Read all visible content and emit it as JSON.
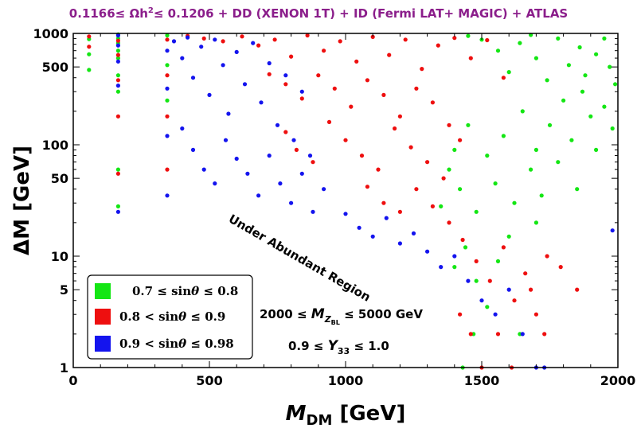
{
  "chart_data": {
    "type": "scatter",
    "title": "0.1166≤ Ωh²≤ 0.1206 + DD (XENON 1T) + ID (Fermi LAT+ MAGIC) + ATLAS",
    "title_parts": {
      "a": "0.1166≤ Ωh",
      "sup": "2",
      "b": "≤ 0.1206 + DD (XENON 1T) + ID (Fermi LAT+ MAGIC) + ATLAS"
    },
    "xlabel": "M_DM [GeV]",
    "xlabel_parts": {
      "main": "M",
      "sub": "DM",
      "unit": " [GeV]"
    },
    "ylabel": "ΔM [GeV]",
    "xlim": [
      0,
      2000
    ],
    "ylim": [
      1,
      1000
    ],
    "yscale": "log",
    "x_ticks": [
      {
        "value": 0,
        "label": "0"
      },
      {
        "value": 500,
        "label": "500"
      },
      {
        "value": 1000,
        "label": "1000"
      },
      {
        "value": 1500,
        "label": "1500"
      },
      {
        "value": 2000,
        "label": "2000"
      }
    ],
    "y_ticks": [
      {
        "value": 1,
        "label": "1"
      },
      {
        "value": 5,
        "label": "5"
      },
      {
        "value": 10,
        "label": "10"
      },
      {
        "value": 50,
        "label": "50"
      },
      {
        "value": 100,
        "label": "100"
      },
      {
        "value": 500,
        "label": "500"
      },
      {
        "value": 1000,
        "label": "1000"
      }
    ],
    "annotations": {
      "region": "Under Abundant Region",
      "mzbl": {
        "a": "2000 ≤ ",
        "main": "M",
        "sub1": "Z",
        "sub2": "BL",
        "b": " ≤ 5000 GeV"
      },
      "y33": {
        "a": "0.9 ≤ ",
        "main": "Y",
        "sub": "33",
        "b": " ≤ 1.0"
      }
    },
    "series": [
      {
        "name": "0.7 ≤ sinθ ≤ 0.8",
        "label_parts": {
          "a": "0.7 ≤ sin",
          "theta": "θ",
          "b": " ≤ 0.8"
        },
        "color": "#14e614",
        "points": [
          [
            58,
            890
          ],
          [
            58,
            650
          ],
          [
            58,
            470
          ],
          [
            165,
            980
          ],
          [
            165,
            900
          ],
          [
            165,
            820
          ],
          [
            165,
            700
          ],
          [
            165,
            600
          ],
          [
            165,
            420
          ],
          [
            165,
            300
          ],
          [
            165,
            60
          ],
          [
            165,
            28
          ],
          [
            345,
            960
          ],
          [
            345,
            520
          ],
          [
            345,
            250
          ],
          [
            1350,
            28
          ],
          [
            1380,
            60
          ],
          [
            1400,
            90
          ],
          [
            1420,
            40
          ],
          [
            1450,
            150
          ],
          [
            1480,
            25
          ],
          [
            1520,
            80
          ],
          [
            1550,
            45
          ],
          [
            1580,
            120
          ],
          [
            1620,
            30
          ],
          [
            1650,
            200
          ],
          [
            1680,
            60
          ],
          [
            1700,
            90
          ],
          [
            1720,
            35
          ],
          [
            1750,
            150
          ],
          [
            1780,
            70
          ],
          [
            1800,
            250
          ],
          [
            1830,
            110
          ],
          [
            1850,
            40
          ],
          [
            1870,
            300
          ],
          [
            1900,
            180
          ],
          [
            1920,
            90
          ],
          [
            1950,
            220
          ],
          [
            1980,
            140
          ],
          [
            1560,
            700
          ],
          [
            1600,
            450
          ],
          [
            1640,
            820
          ],
          [
            1700,
            600
          ],
          [
            1740,
            380
          ],
          [
            1780,
            900
          ],
          [
            1820,
            520
          ],
          [
            1860,
            750
          ],
          [
            1880,
            420
          ],
          [
            1920,
            650
          ],
          [
            1950,
            900
          ],
          [
            1970,
            500
          ],
          [
            1990,
            350
          ],
          [
            1450,
            950
          ],
          [
            1500,
            880
          ],
          [
            1680,
            970
          ],
          [
            1400,
            8
          ],
          [
            1440,
            12
          ],
          [
            1480,
            6
          ],
          [
            1520,
            3.5
          ],
          [
            1560,
            9
          ],
          [
            1600,
            15
          ],
          [
            1640,
            2
          ],
          [
            1700,
            20
          ],
          [
            1430,
            1
          ],
          [
            1470,
            2
          ]
        ]
      },
      {
        "name": "0.8 < sinθ ≤ 0.9",
        "label_parts": {
          "a": "0.8 < sin",
          "theta": "θ",
          "b": " ≤ 0.9"
        },
        "color": "#ee0f0f",
        "points": [
          [
            58,
            940
          ],
          [
            58,
            760
          ],
          [
            165,
            860
          ],
          [
            165,
            640
          ],
          [
            165,
            380
          ],
          [
            165,
            180
          ],
          [
            165,
            55
          ],
          [
            345,
            880
          ],
          [
            345,
            420
          ],
          [
            345,
            180
          ],
          [
            345,
            60
          ],
          [
            420,
            950
          ],
          [
            480,
            900
          ],
          [
            550,
            850
          ],
          [
            620,
            940
          ],
          [
            680,
            780
          ],
          [
            740,
            880
          ],
          [
            800,
            620
          ],
          [
            860,
            960
          ],
          [
            920,
            700
          ],
          [
            980,
            850
          ],
          [
            1040,
            560
          ],
          [
            1100,
            930
          ],
          [
            1160,
            640
          ],
          [
            1220,
            880
          ],
          [
            1280,
            480
          ],
          [
            1340,
            780
          ],
          [
            1400,
            910
          ],
          [
            1460,
            600
          ],
          [
            1520,
            870
          ],
          [
            1580,
            400
          ],
          [
            720,
            430
          ],
          [
            780,
            350
          ],
          [
            840,
            260
          ],
          [
            900,
            420
          ],
          [
            960,
            320
          ],
          [
            1020,
            220
          ],
          [
            1080,
            380
          ],
          [
            1140,
            280
          ],
          [
            1200,
            180
          ],
          [
            1260,
            320
          ],
          [
            1320,
            240
          ],
          [
            1380,
            150
          ],
          [
            780,
            130
          ],
          [
            820,
            90
          ],
          [
            880,
            70
          ],
          [
            940,
            160
          ],
          [
            1000,
            110
          ],
          [
            1060,
            80
          ],
          [
            1120,
            60
          ],
          [
            1180,
            140
          ],
          [
            1240,
            95
          ],
          [
            1300,
            70
          ],
          [
            1360,
            50
          ],
          [
            1420,
            110
          ],
          [
            1080,
            42
          ],
          [
            1140,
            30
          ],
          [
            1200,
            25
          ],
          [
            1260,
            40
          ],
          [
            1320,
            28
          ],
          [
            1380,
            20
          ],
          [
            1430,
            14
          ],
          [
            1480,
            9
          ],
          [
            1530,
            6
          ],
          [
            1580,
            12
          ],
          [
            1620,
            4
          ],
          [
            1660,
            7
          ],
          [
            1700,
            3
          ],
          [
            1740,
            10
          ],
          [
            1790,
            8
          ],
          [
            1850,
            5
          ],
          [
            1420,
            3
          ],
          [
            1460,
            2
          ],
          [
            1500,
            1
          ],
          [
            1560,
            2
          ],
          [
            1610,
            1
          ],
          [
            1680,
            5
          ],
          [
            1730,
            2
          ]
        ]
      },
      {
        "name": "0.9 < sinθ ≤ 0.98",
        "label_parts": {
          "a": "0.9 < sin",
          "theta": "θ",
          "b": " ≤ 0.98"
        },
        "color": "#1414ee",
        "points": [
          [
            165,
            960
          ],
          [
            165,
            780
          ],
          [
            165,
            560
          ],
          [
            165,
            340
          ],
          [
            165,
            25
          ],
          [
            345,
            700
          ],
          [
            345,
            320
          ],
          [
            345,
            120
          ],
          [
            345,
            35
          ],
          [
            370,
            850
          ],
          [
            400,
            600
          ],
          [
            420,
            920
          ],
          [
            440,
            400
          ],
          [
            470,
            760
          ],
          [
            500,
            280
          ],
          [
            520,
            880
          ],
          [
            550,
            520
          ],
          [
            570,
            190
          ],
          [
            600,
            680
          ],
          [
            630,
            350
          ],
          [
            660,
            820
          ],
          [
            690,
            240
          ],
          [
            720,
            540
          ],
          [
            750,
            150
          ],
          [
            780,
            420
          ],
          [
            810,
            110
          ],
          [
            840,
            300
          ],
          [
            870,
            80
          ],
          [
            400,
            140
          ],
          [
            440,
            90
          ],
          [
            480,
            60
          ],
          [
            520,
            45
          ],
          [
            560,
            110
          ],
          [
            600,
            75
          ],
          [
            640,
            55
          ],
          [
            680,
            35
          ],
          [
            720,
            80
          ],
          [
            760,
            45
          ],
          [
            800,
            30
          ],
          [
            840,
            55
          ],
          [
            880,
            25
          ],
          [
            920,
            40
          ],
          [
            1000,
            24
          ],
          [
            1050,
            18
          ],
          [
            1100,
            15
          ],
          [
            1150,
            22
          ],
          [
            1200,
            13
          ],
          [
            1250,
            16
          ],
          [
            1300,
            11
          ],
          [
            1350,
            8
          ],
          [
            1400,
            10
          ],
          [
            1450,
            6
          ],
          [
            1500,
            4
          ],
          [
            1550,
            3
          ],
          [
            1600,
            5
          ],
          [
            1650,
            2
          ],
          [
            1700,
            1
          ],
          [
            1730,
            1
          ],
          [
            1980,
            17
          ]
        ]
      }
    ]
  }
}
